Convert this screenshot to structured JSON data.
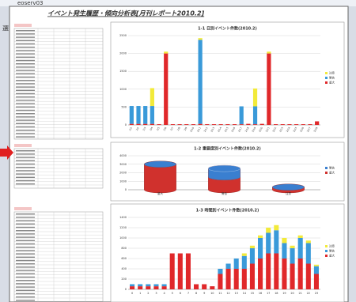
{
  "window": {
    "tab_label": "eoserv03",
    "side_label": "選"
  },
  "report": {
    "title": "イベント発生履歴・傾向分析表[月刊レポート2010.2]"
  },
  "chart_data": [
    {
      "type": "bar",
      "title": "1-1 日別イベント件数(2010.2)",
      "categories": [
        "2/1",
        "2/2",
        "2/3",
        "2/4",
        "2/5",
        "2/6",
        "2/7",
        "2/8",
        "2/9",
        "2/10",
        "2/11",
        "2/12",
        "2/13",
        "2/14",
        "2/15",
        "2/16",
        "2/17",
        "2/18",
        "2/19",
        "2/20",
        "2/21",
        "2/22",
        "2/23",
        "2/24",
        "2/25",
        "2/26",
        "2/27",
        "2/28"
      ],
      "series": [
        {
          "name": "重大",
          "color": "#e0282a",
          "values": [
            30,
            30,
            30,
            30,
            20,
            2000,
            20,
            20,
            20,
            20,
            30,
            20,
            20,
            20,
            20,
            20,
            20,
            30,
            20,
            30,
            2000,
            20,
            20,
            20,
            20,
            20,
            20,
            100
          ]
        },
        {
          "name": "警告",
          "color": "#3a9ad9",
          "values": [
            500,
            500,
            500,
            500,
            0,
            0,
            0,
            0,
            0,
            0,
            2350,
            0,
            0,
            0,
            0,
            0,
            500,
            0,
            500,
            0,
            0,
            0,
            0,
            0,
            0,
            0,
            0,
            0
          ]
        },
        {
          "name": "注意",
          "color": "#f2ea3a",
          "values": [
            0,
            0,
            0,
            500,
            0,
            50,
            0,
            0,
            0,
            0,
            50,
            0,
            0,
            0,
            0,
            0,
            0,
            0,
            500,
            0,
            50,
            0,
            0,
            0,
            0,
            0,
            0,
            0
          ]
        }
      ],
      "ylim": [
        0,
        2500
      ],
      "yticks": [
        0,
        500,
        1000,
        1500,
        2000,
        2500
      ],
      "grid": true,
      "legend": "right"
    },
    {
      "type": "cylinder",
      "title": "1-2 重要度別イベント件数(2010.2)",
      "categories": [
        "重大",
        "警告",
        "注意"
      ],
      "series": [
        {
          "name": "重大",
          "color": "#d0312d",
          "values": [
            3000,
            1500,
            300
          ]
        },
        {
          "name": "警告",
          "color": "#3a7fd0",
          "values": [
            0,
            1000,
            0
          ]
        }
      ],
      "ylim": [
        0,
        4000
      ],
      "yticks": [
        0,
        1000,
        2000,
        3000,
        4000
      ],
      "grid": true,
      "legend": "right"
    },
    {
      "type": "bar",
      "title": "1-3 時間別イベント件数(2010.2)",
      "categories": [
        "0",
        "1",
        "2",
        "3",
        "4",
        "5",
        "6",
        "7",
        "8",
        "9",
        "10",
        "11",
        "12",
        "13",
        "14",
        "15",
        "16",
        "17",
        "18",
        "19",
        "20",
        "21",
        "22",
        "23"
      ],
      "series": [
        {
          "name": "重大",
          "color": "#e0282a",
          "values": [
            60,
            60,
            60,
            60,
            60,
            700,
            700,
            700,
            100,
            100,
            60,
            300,
            400,
            400,
            400,
            500,
            600,
            700,
            700,
            600,
            500,
            600,
            500,
            300
          ]
        },
        {
          "name": "警告",
          "color": "#3a9ad9",
          "values": [
            40,
            40,
            40,
            40,
            40,
            0,
            0,
            0,
            0,
            0,
            0,
            100,
            100,
            200,
            250,
            300,
            400,
            400,
            450,
            300,
            300,
            400,
            400,
            150
          ]
        },
        {
          "name": "注意",
          "color": "#f2ea3a",
          "values": [
            0,
            0,
            0,
            0,
            0,
            0,
            0,
            0,
            0,
            0,
            0,
            0,
            0,
            0,
            50,
            50,
            50,
            100,
            100,
            100,
            50,
            50,
            50,
            30
          ]
        }
      ],
      "ylim": [
        0,
        1400
      ],
      "yticks": [
        0,
        200,
        400,
        600,
        800,
        1000,
        1200,
        1400
      ],
      "grid": true,
      "legend": "right"
    }
  ]
}
